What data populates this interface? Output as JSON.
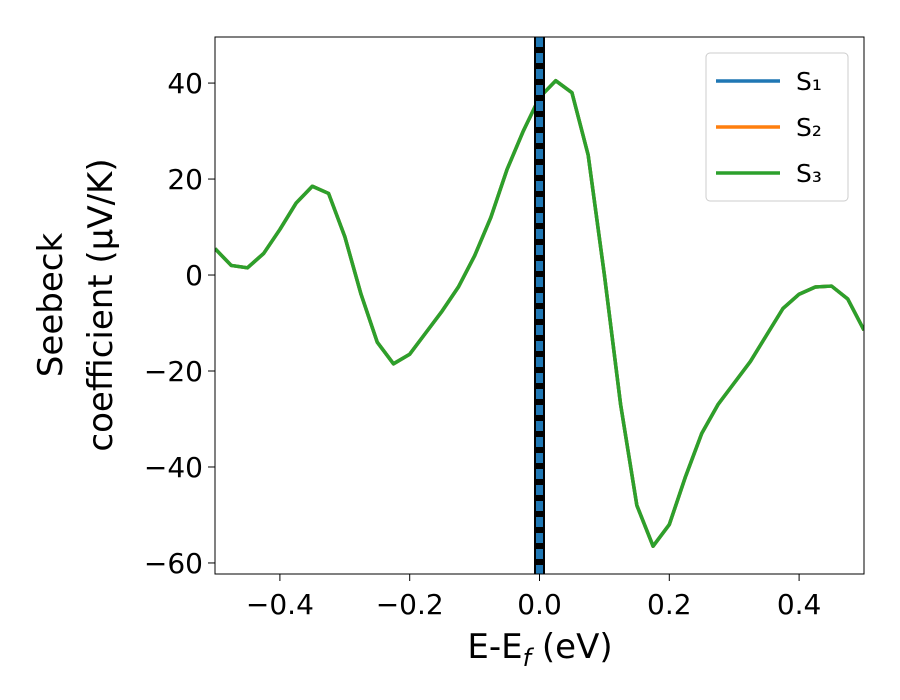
{
  "chart_data": {
    "type": "line",
    "x": [
      -0.5,
      -0.475,
      -0.45,
      -0.425,
      -0.4,
      -0.375,
      -0.35,
      -0.325,
      -0.3,
      -0.275,
      -0.25,
      -0.225,
      -0.2,
      -0.175,
      -0.15,
      -0.125,
      -0.1,
      -0.075,
      -0.05,
      -0.025,
      0,
      0.025,
      0.05,
      0.075,
      0.1,
      0.125,
      0.15,
      0.175,
      0.2,
      0.225,
      0.25,
      0.275,
      0.3,
      0.325,
      0.35,
      0.375,
      0.4,
      0.425,
      0.45,
      0.475,
      0.5
    ],
    "series": [
      {
        "name": "S₁",
        "color": "#1f77b4",
        "values": [
          5.5,
          2,
          1.5,
          4.5,
          9.5,
          15,
          18.5,
          17,
          8,
          -4,
          -14,
          -18.5,
          -16.5,
          -12,
          -7.5,
          -2.5,
          4,
          12,
          22,
          30,
          37,
          40.5,
          38,
          25,
          0,
          -27,
          -48,
          -56.5,
          -52,
          -42,
          -33,
          -27,
          -22.5,
          -18,
          -12.5,
          -7,
          -4,
          -2.5,
          -2.3,
          -5,
          -11.5
        ]
      },
      {
        "name": "S₂",
        "color": "#ff7f0e",
        "values": [
          5.5,
          2,
          1.5,
          4.5,
          9.5,
          15,
          18.5,
          17,
          8,
          -4,
          -14,
          -18.5,
          -16.5,
          -12,
          -7.5,
          -2.5,
          4,
          12,
          22,
          30,
          37,
          40.5,
          38,
          25,
          0,
          -27,
          -48,
          -56.5,
          -52,
          -42,
          -33,
          -27,
          -22.5,
          -18,
          -12.5,
          -7,
          -4,
          -2.5,
          -2.3,
          -5,
          -11.5
        ]
      },
      {
        "name": "S₃",
        "color": "#2ca02c",
        "values": [
          5.5,
          2,
          1.5,
          4.5,
          9.5,
          15,
          18.5,
          17,
          8,
          -4,
          -14,
          -18.5,
          -16.5,
          -12,
          -7.5,
          -2.5,
          4,
          12,
          22,
          30,
          37,
          40.5,
          38,
          25,
          0,
          -27,
          -48,
          -56.5,
          -52,
          -42,
          -33,
          -27,
          -22.5,
          -18,
          -12.5,
          -7,
          -4,
          -2.5,
          -2.3,
          -5,
          -11.5
        ]
      }
    ],
    "vline": {
      "x": 0,
      "color": "#000000",
      "dash_color": "#1f77b4"
    },
    "xlim": [
      -0.5,
      0.5
    ],
    "ylim": [
      -62.3,
      49.6
    ],
    "xticks": [
      {
        "value": -0.4,
        "label": "−0.4"
      },
      {
        "value": -0.2,
        "label": "−0.2"
      },
      {
        "value": 0,
        "label": "0.0"
      },
      0.2,
      0.4
    ],
    "yticks": [
      {
        "value": -60,
        "label": "−60"
      },
      {
        "value": -40,
        "label": "−40"
      },
      {
        "value": -20,
        "label": "−20"
      },
      0,
      20,
      40
    ],
    "xlabel_parts": [
      "E-E",
      "f",
      " (eV)"
    ],
    "ylabel_lines": [
      "Seebeck",
      "coefficient  (μV/K)"
    ],
    "legend": "upper right"
  }
}
